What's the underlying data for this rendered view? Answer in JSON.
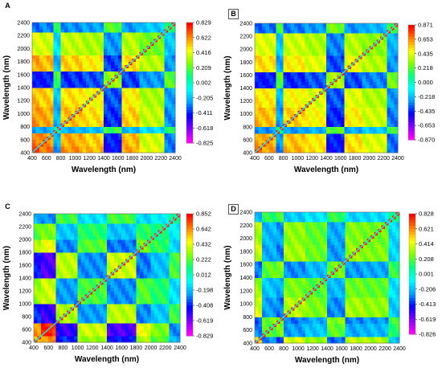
{
  "chart_data": [
    {
      "panel": "A",
      "type": "heatmap",
      "description": "synchronous 2D correlation map",
      "xlabel": "Wavelength (nm)",
      "ylabel": "Wavelength (nm)",
      "x_ticks": [
        400,
        600,
        800,
        1000,
        1200,
        1400,
        1600,
        1800,
        2000,
        2200,
        2400
      ],
      "y_ticks": [
        400,
        600,
        800,
        1000,
        1200,
        1400,
        1600,
        1800,
        2000,
        2200,
        2400
      ],
      "xlim": [
        400,
        2400
      ],
      "ylim": [
        400,
        2400
      ],
      "colorbar_ticks": [
        "0.829",
        "0.622",
        "0.416",
        "0.209",
        "0.002",
        "-0.205",
        "-0.411",
        "-0.618",
        "-0.825"
      ],
      "colorbar_range": [
        -0.825,
        0.829
      ],
      "blocks": [
        {
          "range": [
            400,
            500
          ],
          "value": 0.7
        },
        {
          "range": [
            500,
            700
          ],
          "value": 0.62
        },
        {
          "range": [
            700,
            800
          ],
          "value": -0.1
        },
        {
          "range": [
            800,
            1100
          ],
          "value": 0.55
        },
        {
          "range": [
            1100,
            1400
          ],
          "value": 0.45
        },
        {
          "range": [
            1400,
            1650
          ],
          "value": -0.3
        },
        {
          "range": [
            1650,
            1900
          ],
          "value": 0.5
        },
        {
          "range": [
            1900,
            2250
          ],
          "value": 0.25
        },
        {
          "range": [
            2250,
            2400
          ],
          "value": -0.15
        }
      ]
    },
    {
      "panel": "B",
      "type": "heatmap",
      "description": "synchronous 2D correlation map",
      "xlabel": "Wavelength (nm)",
      "ylabel": "Wavelength (nm)",
      "x_ticks": [
        400,
        600,
        800,
        1000,
        1200,
        1400,
        1600,
        1800,
        2000,
        2200,
        2400
      ],
      "y_ticks": [
        400,
        600,
        800,
        1000,
        1200,
        1400,
        1600,
        1800,
        2000,
        2200,
        2400
      ],
      "xlim": [
        400,
        2400
      ],
      "ylim": [
        400,
        2400
      ],
      "colorbar_ticks": [
        "0.871",
        "0.653",
        "0.435",
        "0.218",
        "0.000",
        "-0.218",
        "-0.435",
        "-0.653",
        "-0.870"
      ],
      "colorbar_range": [
        -0.87,
        0.871
      ],
      "blocks": [
        {
          "range": [
            400,
            500
          ],
          "value": 0.65
        },
        {
          "range": [
            500,
            700
          ],
          "value": 0.6
        },
        {
          "range": [
            700,
            800
          ],
          "value": -0.15
        },
        {
          "range": [
            800,
            1100
          ],
          "value": 0.55
        },
        {
          "range": [
            1100,
            1400
          ],
          "value": 0.42
        },
        {
          "range": [
            1400,
            1650
          ],
          "value": -0.35
        },
        {
          "range": [
            1650,
            1900
          ],
          "value": 0.45
        },
        {
          "range": [
            1900,
            2250
          ],
          "value": 0.3
        },
        {
          "range": [
            2250,
            2400
          ],
          "value": -0.2
        }
      ]
    },
    {
      "panel": "C",
      "type": "heatmap",
      "description": "synchronous 2D correlation map",
      "xlabel": "Wavelength (nm)",
      "ylabel": "Wavelength (nm)",
      "x_ticks": [
        400,
        600,
        800,
        1000,
        1200,
        1400,
        1600,
        1800,
        2000,
        2200,
        2400
      ],
      "y_ticks": [
        400,
        600,
        800,
        1000,
        1200,
        1400,
        1600,
        1800,
        2000,
        2200,
        2400
      ],
      "xlim": [
        400,
        2400
      ],
      "ylim": [
        400,
        2400
      ],
      "colorbar_ticks": [
        "0.852",
        "0.642",
        "0.432",
        "0.222",
        "0.012",
        "-0.198",
        "-0.408",
        "-0.619",
        "-0.829"
      ],
      "colorbar_range": [
        -0.829,
        0.852
      ],
      "blocks": [
        {
          "range": [
            400,
            500
          ],
          "value": 0.5
        },
        {
          "range": [
            500,
            700
          ],
          "value": 0.8
        },
        {
          "range": [
            700,
            1000
          ],
          "value": -0.35
        },
        {
          "range": [
            1000,
            1400
          ],
          "value": 0.2
        },
        {
          "range": [
            1400,
            1800
          ],
          "value": -0.4
        },
        {
          "range": [
            1800,
            2000
          ],
          "value": 0.25
        },
        {
          "range": [
            2000,
            2250
          ],
          "value": 0.1
        },
        {
          "range": [
            2250,
            2400
          ],
          "value": -0.1
        }
      ]
    },
    {
      "panel": "D",
      "type": "heatmap",
      "description": "synchronous 2D correlation map",
      "xlabel": "Wavelength (nm)",
      "ylabel": "Wavelength (nm)",
      "x_ticks": [
        400,
        600,
        800,
        1000,
        1200,
        1400,
        1600,
        1800,
        2000,
        2200,
        2400
      ],
      "y_ticks": [
        400,
        600,
        800,
        1000,
        1200,
        1400,
        1600,
        1800,
        2000,
        2200,
        2400
      ],
      "xlim": [
        400,
        2400
      ],
      "ylim": [
        400,
        2400
      ],
      "colorbar_ticks": [
        "0.828",
        "0.621",
        "0.414",
        "0.208",
        "0.001",
        "-0.206",
        "-0.413",
        "-0.619",
        "-0.826"
      ],
      "colorbar_range": [
        -0.826,
        0.828
      ],
      "blocks": [
        {
          "range": [
            400,
            500
          ],
          "value": 0.45
        },
        {
          "range": [
            500,
            700
          ],
          "value": -0.2
        },
        {
          "range": [
            700,
            800
          ],
          "value": -0.3
        },
        {
          "range": [
            800,
            1100
          ],
          "value": 0.35
        },
        {
          "range": [
            1100,
            1400
          ],
          "value": 0.2
        },
        {
          "range": [
            1400,
            1650
          ],
          "value": -0.25
        },
        {
          "range": [
            1650,
            1900
          ],
          "value": 0.3
        },
        {
          "range": [
            1900,
            2250
          ],
          "value": 0.25
        },
        {
          "range": [
            2250,
            2400
          ],
          "value": -0.1
        }
      ]
    }
  ],
  "colors": {
    "colormap": [
      "#ff00ff",
      "#8000ff",
      "#0000ff",
      "#00a0ff",
      "#00ffff",
      "#00ff80",
      "#80ff00",
      "#ffff00",
      "#ff8000",
      "#ff0000"
    ]
  }
}
